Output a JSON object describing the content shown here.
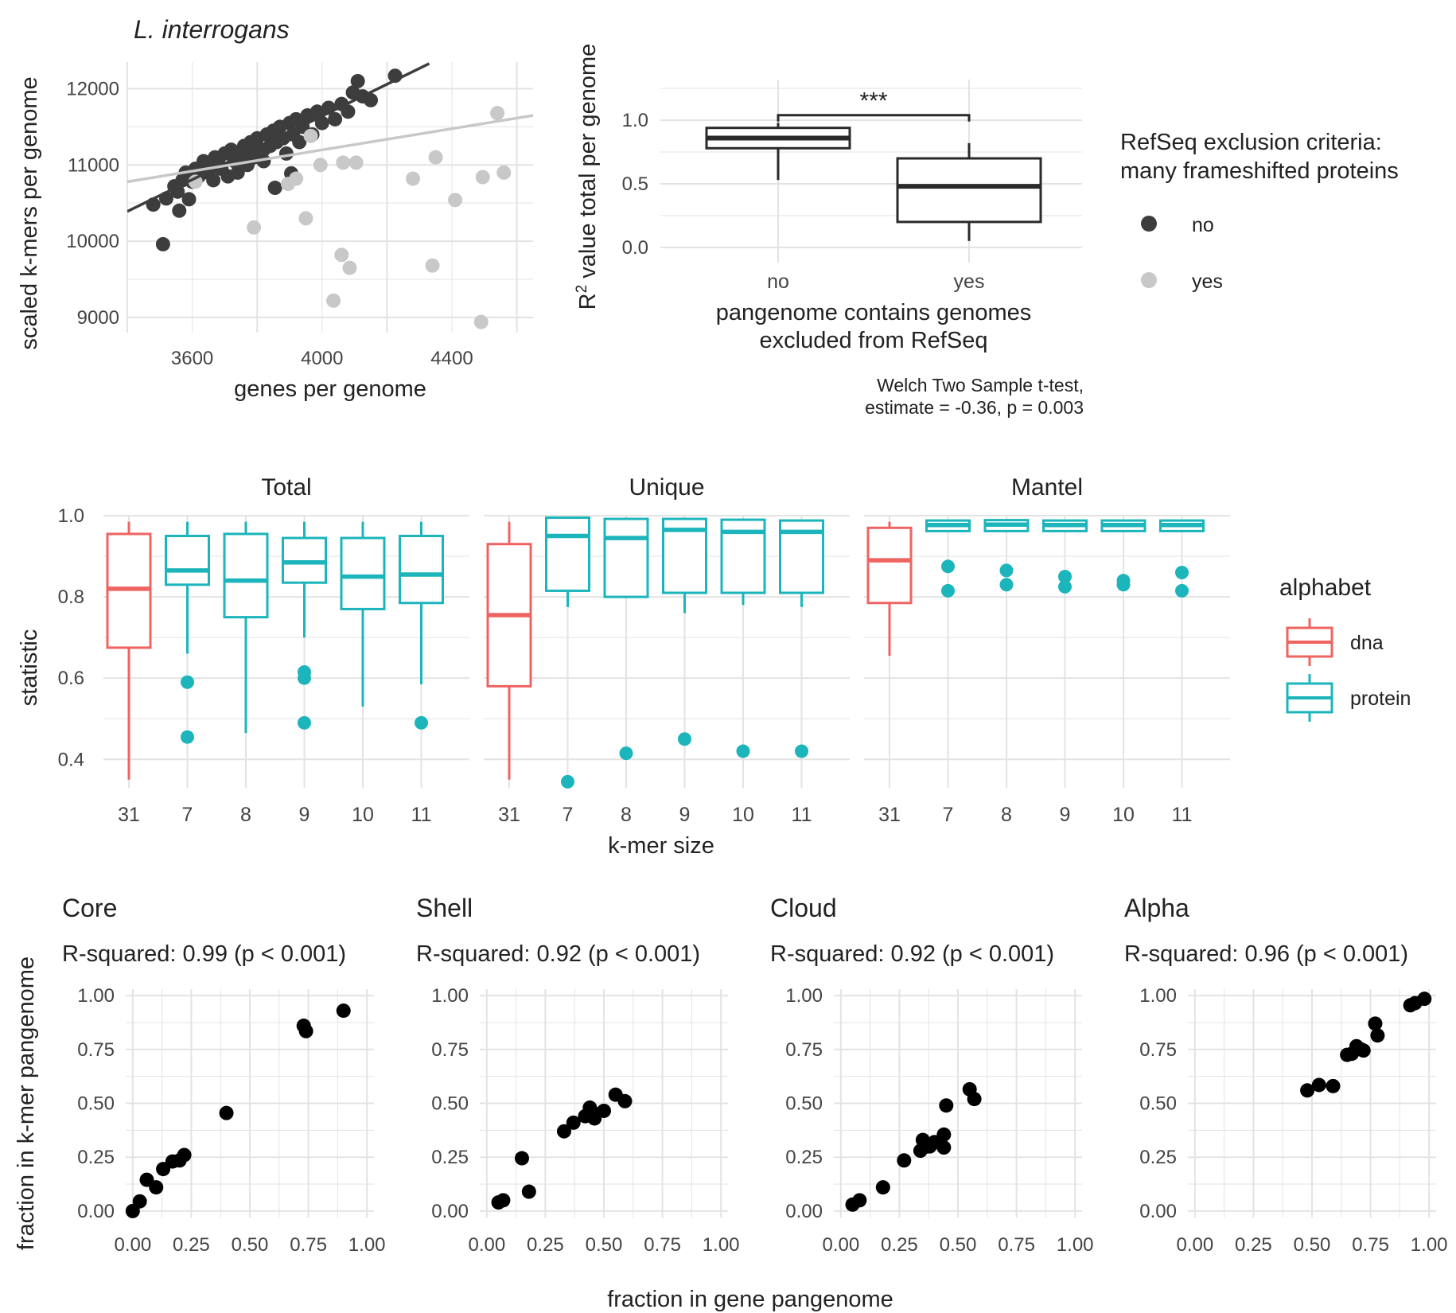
{
  "colors": {
    "no": "#3d3d3d",
    "yes": "#c8c8c8",
    "box": "#2a2a2a",
    "dna": "#EF6461",
    "protein": "#1BB5BB",
    "point": "#000000",
    "grid": "#e3e3e3",
    "text": "#333333"
  },
  "chart_data": [
    {
      "id": "A",
      "type": "scatter",
      "title": "L. interrogans",
      "xlabel": "genes per genome",
      "ylabel": "scaled k-mers per genome",
      "xlim": [
        3400,
        4650
      ],
      "ylim": [
        8800,
        12350
      ],
      "xticks": [
        3600,
        4000,
        4400
      ],
      "yticks": [
        9000,
        10000,
        11000,
        12000
      ],
      "series": [
        {
          "name": "no",
          "points": [
            [
              3480,
              10480
            ],
            [
              3510,
              9960
            ],
            [
              3520,
              10560
            ],
            [
              3545,
              10720
            ],
            [
              3560,
              10400
            ],
            [
              3570,
              10800
            ],
            [
              3580,
              10900
            ],
            [
              3555,
              10650
            ],
            [
              3590,
              10550
            ],
            [
              3610,
              10950
            ],
            [
              3620,
              10850
            ],
            [
              3635,
              11050
            ],
            [
              3650,
              10900
            ],
            [
              3660,
              11000
            ],
            [
              3670,
              11100
            ],
            [
              3680,
              11050
            ],
            [
              3690,
              10950
            ],
            [
              3700,
              11150
            ],
            [
              3710,
              10850
            ],
            [
              3720,
              11200
            ],
            [
              3730,
              11050
            ],
            [
              3740,
              10900
            ],
            [
              3750,
              11150
            ],
            [
              3760,
              11250
            ],
            [
              3770,
              11000
            ],
            [
              3780,
              11300
            ],
            [
              3790,
              11100
            ],
            [
              3800,
              11350
            ],
            [
              3810,
              11200
            ],
            [
              3820,
              11050
            ],
            [
              3830,
              11400
            ],
            [
              3840,
              11250
            ],
            [
              3850,
              11450
            ],
            [
              3860,
              11300
            ],
            [
              3870,
              11500
            ],
            [
              3880,
              11350
            ],
            [
              3890,
              11150
            ],
            [
              3900,
              11550
            ],
            [
              3910,
              11400
            ],
            [
              3920,
              11600
            ],
            [
              3930,
              11300
            ],
            [
              3940,
              11500
            ],
            [
              3955,
              11650
            ],
            [
              3970,
              11400
            ],
            [
              3985,
              11700
            ],
            [
              4000,
              11550
            ],
            [
              4020,
              11750
            ],
            [
              4040,
              11600
            ],
            [
              4060,
              11800
            ],
            [
              4080,
              11700
            ],
            [
              4095,
              11950
            ],
            [
              4110,
              12100
            ],
            [
              4125,
              11900
            ],
            [
              4150,
              11850
            ],
            [
              4225,
              12170
            ],
            [
              3855,
              10700
            ],
            [
              3770,
              11150
            ],
            [
              3665,
              10800
            ],
            [
              3600,
              10780
            ],
            [
              3820,
              11200
            ],
            [
              3745,
              11050
            ],
            [
              3795,
              11200
            ],
            [
              3905,
              10890
            ]
          ]
        },
        {
          "name": "yes",
          "points": [
            [
              3610,
              10780
            ],
            [
              3790,
              10180
            ],
            [
              3895,
              10750
            ],
            [
              3920,
              10820
            ],
            [
              3950,
              10300
            ],
            [
              3965,
              11380
            ],
            [
              3995,
              11000
            ],
            [
              4035,
              9220
            ],
            [
              4060,
              9820
            ],
            [
              4065,
              11030
            ],
            [
              4085,
              9650
            ],
            [
              4105,
              11030
            ],
            [
              4280,
              10820
            ],
            [
              4340,
              9680
            ],
            [
              4350,
              11100
            ],
            [
              4410,
              10540
            ],
            [
              4490,
              8940
            ],
            [
              4495,
              10840
            ],
            [
              4540,
              11680
            ],
            [
              4560,
              10900
            ]
          ]
        }
      ],
      "fit_lines": [
        {
          "series": "no",
          "from": [
            3400,
            10390
          ],
          "to": [
            4330,
            12330
          ]
        },
        {
          "series": "yes",
          "from": [
            3400,
            10780
          ],
          "to": [
            4650,
            11650
          ]
        }
      ]
    },
    {
      "id": "B",
      "type": "box",
      "xlabel": "pangenome contains genomes\nexcluded from RefSeq",
      "ylabel_main": "R",
      "ylabel_sup": "2",
      "ylabel_rest": " value total per genome",
      "categories": [
        "no",
        "yes"
      ],
      "ylim": [
        -0.12,
        1.32
      ],
      "yticks": [
        0.0,
        0.5,
        1.0
      ],
      "ytick_labels": [
        "0.0",
        "0.5",
        "1.0"
      ],
      "boxes": [
        {
          "category": "no",
          "lower_whisker": 0.53,
          "q1": 0.78,
          "median": 0.86,
          "q3": 0.94,
          "upper_whisker": 0.98
        },
        {
          "category": "yes",
          "lower_whisker": 0.05,
          "q1": 0.2,
          "median": 0.48,
          "q3": 0.7,
          "upper_whisker": 0.82
        }
      ],
      "significance": "***",
      "test_line1": "Welch Two Sample t-test,",
      "test_line2": "estimate = -0.36, p = 0.003"
    },
    {
      "id": "C",
      "type": "box",
      "facets": [
        "Total",
        "Unique",
        "Mantel"
      ],
      "categories": [
        "31",
        "7",
        "8",
        "9",
        "10",
        "11"
      ],
      "xlabel": "k-mer size",
      "ylabel": "statistic",
      "ylim": [
        0.33,
        1.0
      ],
      "yticks": [
        0.4,
        0.6,
        0.8,
        1.0
      ],
      "ytick_labels": [
        "0.4",
        "0.6",
        "0.8",
        "1.0"
      ],
      "boxes": [
        [
          {
            "alphabet": "dna",
            "lw": 0.35,
            "q1": 0.675,
            "med": 0.82,
            "q3": 0.955,
            "uw": 0.985,
            "outliers": []
          },
          {
            "alphabet": "protein",
            "lw": 0.66,
            "q1": 0.83,
            "med": 0.865,
            "q3": 0.95,
            "uw": 0.985,
            "outliers": [
              0.59,
              0.455
            ]
          },
          {
            "alphabet": "protein",
            "lw": 0.465,
            "q1": 0.75,
            "med": 0.84,
            "q3": 0.955,
            "uw": 0.985,
            "outliers": []
          },
          {
            "alphabet": "protein",
            "lw": 0.7,
            "q1": 0.835,
            "med": 0.885,
            "q3": 0.945,
            "uw": 0.985,
            "outliers": [
              0.615,
              0.6,
              0.49
            ]
          },
          {
            "alphabet": "protein",
            "lw": 0.53,
            "q1": 0.77,
            "med": 0.85,
            "q3": 0.945,
            "uw": 0.985,
            "outliers": []
          },
          {
            "alphabet": "protein",
            "lw": 0.585,
            "q1": 0.785,
            "med": 0.855,
            "q3": 0.95,
            "uw": 0.985,
            "outliers": [
              0.49
            ]
          }
        ],
        [
          {
            "alphabet": "dna",
            "lw": 0.35,
            "q1": 0.58,
            "med": 0.755,
            "q3": 0.93,
            "uw": 0.985,
            "outliers": []
          },
          {
            "alphabet": "protein",
            "lw": 0.775,
            "q1": 0.815,
            "med": 0.95,
            "q3": 0.995,
            "uw": 0.998,
            "outliers": [
              0.345
            ]
          },
          {
            "alphabet": "protein",
            "lw": 0.8,
            "q1": 0.8,
            "med": 0.945,
            "q3": 0.992,
            "uw": 0.995,
            "outliers": [
              0.415
            ]
          },
          {
            "alphabet": "protein",
            "lw": 0.76,
            "q1": 0.81,
            "med": 0.965,
            "q3": 0.992,
            "uw": 0.995,
            "outliers": [
              0.45
            ]
          },
          {
            "alphabet": "protein",
            "lw": 0.78,
            "q1": 0.81,
            "med": 0.96,
            "q3": 0.99,
            "uw": 0.993,
            "outliers": [
              0.42
            ]
          },
          {
            "alphabet": "protein",
            "lw": 0.775,
            "q1": 0.81,
            "med": 0.96,
            "q3": 0.988,
            "uw": 0.99,
            "outliers": [
              0.42
            ]
          }
        ],
        [
          {
            "alphabet": "dna",
            "lw": 0.655,
            "q1": 0.785,
            "med": 0.89,
            "q3": 0.97,
            "uw": 0.985,
            "outliers": []
          },
          {
            "alphabet": "protein",
            "lw": 0.96,
            "q1": 0.962,
            "med": 0.977,
            "q3": 0.988,
            "uw": 0.99,
            "outliers": [
              0.875,
              0.815
            ]
          },
          {
            "alphabet": "protein",
            "lw": 0.96,
            "q1": 0.962,
            "med": 0.978,
            "q3": 0.989,
            "uw": 0.99,
            "outliers": [
              0.865,
              0.83
            ]
          },
          {
            "alphabet": "protein",
            "lw": 0.96,
            "q1": 0.962,
            "med": 0.977,
            "q3": 0.988,
            "uw": 0.99,
            "outliers": [
              0.85,
              0.825
            ]
          },
          {
            "alphabet": "protein",
            "lw": 0.96,
            "q1": 0.962,
            "med": 0.977,
            "q3": 0.988,
            "uw": 0.99,
            "outliers": [
              0.84,
              0.83
            ]
          },
          {
            "alphabet": "protein",
            "lw": 0.96,
            "q1": 0.962,
            "med": 0.977,
            "q3": 0.988,
            "uw": 0.99,
            "outliers": [
              0.86,
              0.815
            ]
          }
        ]
      ]
    },
    {
      "id": "D",
      "type": "scatter",
      "xlabel": "fraction in gene pangenome",
      "ylabel": "fraction in k-mer pangenome",
      "xlim": [
        -0.03,
        1.03
      ],
      "ylim": [
        -0.03,
        1.03
      ],
      "ticks": [
        0.0,
        0.25,
        0.5,
        0.75,
        1.0
      ],
      "tick_labels": [
        "0.00",
        "0.25",
        "0.50",
        "0.75",
        "1.00"
      ],
      "panels": [
        {
          "title": "Core",
          "subtitle": "R-squared:  0.99 (p < 0.001)",
          "points": [
            [
              0.0,
              0.0
            ],
            [
              0.03,
              0.045
            ],
            [
              0.06,
              0.145
            ],
            [
              0.1,
              0.11
            ],
            [
              0.13,
              0.195
            ],
            [
              0.17,
              0.23
            ],
            [
              0.2,
              0.235
            ],
            [
              0.22,
              0.26
            ],
            [
              0.4,
              0.455
            ],
            [
              0.73,
              0.86
            ],
            [
              0.74,
              0.835
            ],
            [
              0.9,
              0.93
            ]
          ]
        },
        {
          "title": "Shell",
          "subtitle": "R-squared:  0.92 (p < 0.001)",
          "points": [
            [
              0.05,
              0.04
            ],
            [
              0.07,
              0.05
            ],
            [
              0.15,
              0.245
            ],
            [
              0.18,
              0.09
            ],
            [
              0.33,
              0.37
            ],
            [
              0.37,
              0.41
            ],
            [
              0.42,
              0.44
            ],
            [
              0.44,
              0.48
            ],
            [
              0.46,
              0.43
            ],
            [
              0.5,
              0.465
            ],
            [
              0.55,
              0.54
            ],
            [
              0.59,
              0.51
            ],
            [
              0.45,
              0.46
            ]
          ]
        },
        {
          "title": "Cloud",
          "subtitle": "R-squared:  0.92 (p < 0.001)",
          "points": [
            [
              0.05,
              0.03
            ],
            [
              0.08,
              0.05
            ],
            [
              0.18,
              0.11
            ],
            [
              0.27,
              0.235
            ],
            [
              0.34,
              0.28
            ],
            [
              0.35,
              0.33
            ],
            [
              0.38,
              0.3
            ],
            [
              0.4,
              0.32
            ],
            [
              0.44,
              0.295
            ],
            [
              0.44,
              0.355
            ],
            [
              0.45,
              0.49
            ],
            [
              0.55,
              0.565
            ],
            [
              0.57,
              0.52
            ],
            [
              0.37,
              0.3
            ]
          ]
        },
        {
          "title": "Alpha",
          "subtitle": "R-squared:  0.96 (p < 0.001)",
          "points": [
            [
              0.48,
              0.56
            ],
            [
              0.53,
              0.585
            ],
            [
              0.59,
              0.58
            ],
            [
              0.65,
              0.725
            ],
            [
              0.67,
              0.73
            ],
            [
              0.69,
              0.765
            ],
            [
              0.72,
              0.745
            ],
            [
              0.77,
              0.87
            ],
            [
              0.78,
              0.815
            ],
            [
              0.71,
              0.75
            ],
            [
              0.92,
              0.955
            ],
            [
              0.94,
              0.965
            ],
            [
              0.98,
              0.985
            ]
          ]
        }
      ]
    }
  ],
  "legends": {
    "refseq_title_1": "RefSeq exclusion criteria:",
    "refseq_title_2": "many frameshifted proteins",
    "refseq_no": "no",
    "refseq_yes": "yes",
    "alphabet_title": "alphabet",
    "alphabet_dna": "dna",
    "alphabet_protein": "protein"
  }
}
